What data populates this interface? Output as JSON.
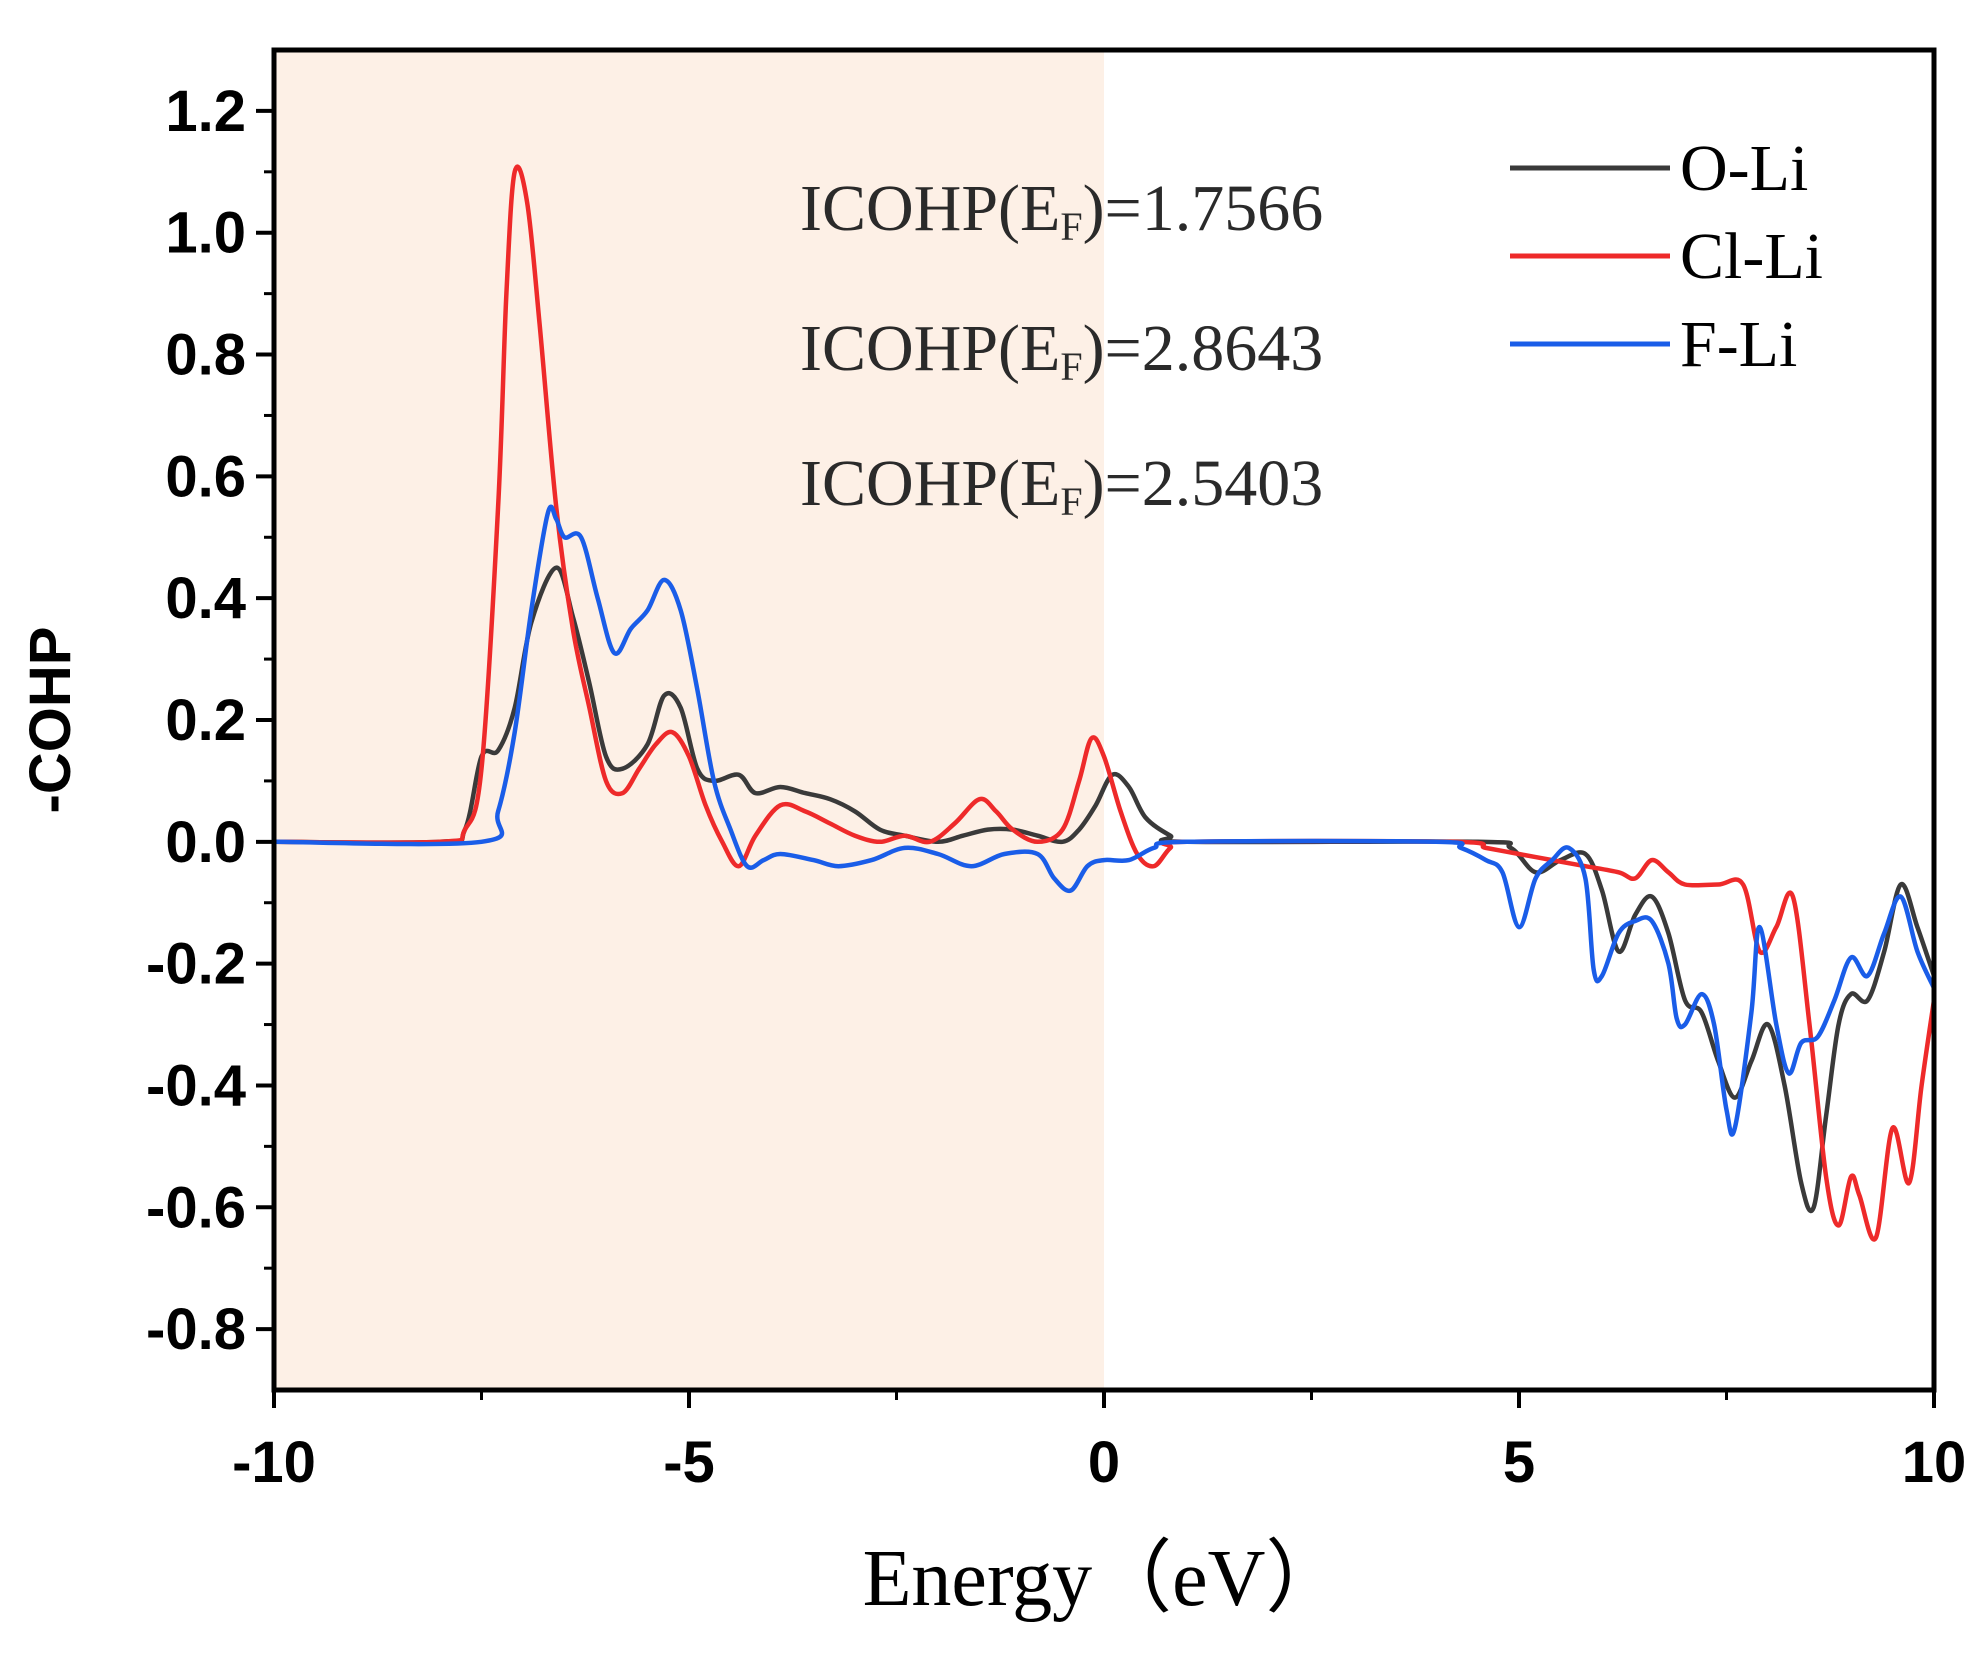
{
  "chart_data": {
    "type": "line",
    "title": "",
    "xlabel": "Energy（eV）",
    "ylabel": "-COHP",
    "xlim": [
      -10,
      10
    ],
    "ylim": [
      -0.9,
      1.3
    ],
    "xticks": [
      -10,
      -5,
      0,
      5,
      10
    ],
    "xtick_labels": [
      "-10",
      "-5",
      "0",
      "5",
      "10"
    ],
    "yticks": [
      -0.8,
      -0.6,
      -0.4,
      -0.2,
      0.0,
      0.2,
      0.4,
      0.6,
      0.8,
      1.0,
      1.2
    ],
    "ytick_labels": [
      "-0.8",
      "-0.6",
      "-0.4",
      "-0.2",
      "0.0",
      "0.2",
      "0.4",
      "0.6",
      "0.8",
      "1.0",
      "1.2"
    ],
    "shaded_region": {
      "x": [
        -10,
        0
      ],
      "color": "#fdf0e6"
    },
    "annotations": [
      {
        "text": "ICOHP(E",
        "sub": "F",
        "value": ")=1.7566"
      },
      {
        "text": "ICOHP(E",
        "sub": "F",
        "value": ")=2.8643"
      },
      {
        "text": "ICOHP(E",
        "sub": "F",
        "value": ")=2.5403"
      }
    ],
    "legend": "top-right",
    "series": [
      {
        "name": "O-Li",
        "color": "#3a3a3a",
        "points": [
          [
            -10,
            0
          ],
          [
            -8,
            0
          ],
          [
            -7.7,
            0.02
          ],
          [
            -7.5,
            0.14
          ],
          [
            -7.3,
            0.15
          ],
          [
            -7.1,
            0.22
          ],
          [
            -6.9,
            0.36
          ],
          [
            -6.6,
            0.45
          ],
          [
            -6.4,
            0.37
          ],
          [
            -6.2,
            0.26
          ],
          [
            -6,
            0.14
          ],
          [
            -5.8,
            0.12
          ],
          [
            -5.5,
            0.16
          ],
          [
            -5.3,
            0.24
          ],
          [
            -5.1,
            0.22
          ],
          [
            -4.9,
            0.12
          ],
          [
            -4.7,
            0.1
          ],
          [
            -4.4,
            0.11
          ],
          [
            -4.2,
            0.08
          ],
          [
            -3.9,
            0.09
          ],
          [
            -3.6,
            0.08
          ],
          [
            -3.3,
            0.07
          ],
          [
            -3,
            0.05
          ],
          [
            -2.7,
            0.02
          ],
          [
            -2.4,
            0.01
          ],
          [
            -2,
            0
          ],
          [
            -1.7,
            0.01
          ],
          [
            -1.4,
            0.02
          ],
          [
            -1.1,
            0.02
          ],
          [
            -0.8,
            0.01
          ],
          [
            -0.5,
            0
          ],
          [
            -0.3,
            0.02
          ],
          [
            -0.1,
            0.06
          ],
          [
            0.1,
            0.11
          ],
          [
            0.3,
            0.09
          ],
          [
            0.5,
            0.04
          ],
          [
            0.8,
            0.01
          ],
          [
            1,
            0
          ],
          [
            4.5,
            0
          ],
          [
            4.9,
            -0.01
          ],
          [
            5.2,
            -0.05
          ],
          [
            5.5,
            -0.03
          ],
          [
            5.8,
            -0.02
          ],
          [
            6,
            -0.08
          ],
          [
            6.2,
            -0.18
          ],
          [
            6.4,
            -0.12
          ],
          [
            6.6,
            -0.09
          ],
          [
            6.8,
            -0.15
          ],
          [
            7,
            -0.26
          ],
          [
            7.2,
            -0.28
          ],
          [
            7.4,
            -0.36
          ],
          [
            7.6,
            -0.42
          ],
          [
            7.8,
            -0.36
          ],
          [
            8,
            -0.3
          ],
          [
            8.2,
            -0.4
          ],
          [
            8.4,
            -0.56
          ],
          [
            8.55,
            -0.6
          ],
          [
            8.7,
            -0.45
          ],
          [
            8.85,
            -0.3
          ],
          [
            9,
            -0.25
          ],
          [
            9.2,
            -0.26
          ],
          [
            9.4,
            -0.18
          ],
          [
            9.6,
            -0.07
          ],
          [
            9.8,
            -0.14
          ],
          [
            10,
            -0.22
          ]
        ]
      },
      {
        "name": "Cl-Li",
        "color": "#ee2a2a",
        "points": [
          [
            -10,
            0
          ],
          [
            -8,
            0
          ],
          [
            -7.7,
            0.02
          ],
          [
            -7.5,
            0.12
          ],
          [
            -7.3,
            0.55
          ],
          [
            -7.2,
            0.9
          ],
          [
            -7.1,
            1.1
          ],
          [
            -6.95,
            1.05
          ],
          [
            -6.8,
            0.85
          ],
          [
            -6.6,
            0.55
          ],
          [
            -6.4,
            0.35
          ],
          [
            -6.2,
            0.22
          ],
          [
            -6,
            0.1
          ],
          [
            -5.8,
            0.08
          ],
          [
            -5.6,
            0.12
          ],
          [
            -5.4,
            0.16
          ],
          [
            -5.2,
            0.18
          ],
          [
            -5,
            0.14
          ],
          [
            -4.8,
            0.06
          ],
          [
            -4.6,
            0
          ],
          [
            -4.4,
            -0.04
          ],
          [
            -4.2,
            0.01
          ],
          [
            -3.9,
            0.06
          ],
          [
            -3.6,
            0.05
          ],
          [
            -3.3,
            0.03
          ],
          [
            -3,
            0.01
          ],
          [
            -2.7,
            0
          ],
          [
            -2.4,
            0.01
          ],
          [
            -2.1,
            0
          ],
          [
            -1.8,
            0.03
          ],
          [
            -1.5,
            0.07
          ],
          [
            -1.3,
            0.05
          ],
          [
            -1.1,
            0.02
          ],
          [
            -0.8,
            0
          ],
          [
            -0.5,
            0.02
          ],
          [
            -0.3,
            0.1
          ],
          [
            -0.15,
            0.17
          ],
          [
            0,
            0.14
          ],
          [
            0.2,
            0.05
          ],
          [
            0.4,
            -0.02
          ],
          [
            0.6,
            -0.04
          ],
          [
            0.8,
            -0.01
          ],
          [
            1,
            0
          ],
          [
            4.2,
            0
          ],
          [
            4.6,
            -0.01
          ],
          [
            5,
            -0.02
          ],
          [
            5.4,
            -0.03
          ],
          [
            5.8,
            -0.04
          ],
          [
            6.2,
            -0.05
          ],
          [
            6.4,
            -0.06
          ],
          [
            6.6,
            -0.03
          ],
          [
            6.8,
            -0.05
          ],
          [
            7,
            -0.07
          ],
          [
            7.4,
            -0.07
          ],
          [
            7.7,
            -0.07
          ],
          [
            7.9,
            -0.18
          ],
          [
            8.1,
            -0.14
          ],
          [
            8.3,
            -0.09
          ],
          [
            8.5,
            -0.3
          ],
          [
            8.7,
            -0.55
          ],
          [
            8.85,
            -0.63
          ],
          [
            9,
            -0.55
          ],
          [
            9.1,
            -0.58
          ],
          [
            9.3,
            -0.65
          ],
          [
            9.5,
            -0.47
          ],
          [
            9.7,
            -0.56
          ],
          [
            9.85,
            -0.4
          ],
          [
            10,
            -0.26
          ]
        ]
      },
      {
        "name": "F-Li",
        "color": "#1a5de8",
        "points": [
          [
            -10,
            0
          ],
          [
            -7.5,
            0
          ],
          [
            -7.3,
            0.05
          ],
          [
            -7.1,
            0.18
          ],
          [
            -6.9,
            0.38
          ],
          [
            -6.7,
            0.54
          ],
          [
            -6.6,
            0.53
          ],
          [
            -6.5,
            0.5
          ],
          [
            -6.3,
            0.5
          ],
          [
            -6.1,
            0.4
          ],
          [
            -5.9,
            0.31
          ],
          [
            -5.7,
            0.35
          ],
          [
            -5.5,
            0.38
          ],
          [
            -5.3,
            0.43
          ],
          [
            -5.1,
            0.38
          ],
          [
            -4.9,
            0.25
          ],
          [
            -4.7,
            0.1
          ],
          [
            -4.5,
            0.02
          ],
          [
            -4.3,
            -0.04
          ],
          [
            -4.1,
            -0.03
          ],
          [
            -3.9,
            -0.02
          ],
          [
            -3.5,
            -0.03
          ],
          [
            -3.2,
            -0.04
          ],
          [
            -2.8,
            -0.03
          ],
          [
            -2.4,
            -0.01
          ],
          [
            -2,
            -0.02
          ],
          [
            -1.6,
            -0.04
          ],
          [
            -1.2,
            -0.02
          ],
          [
            -0.8,
            -0.02
          ],
          [
            -0.6,
            -0.06
          ],
          [
            -0.4,
            -0.08
          ],
          [
            -0.2,
            -0.04
          ],
          [
            0,
            -0.03
          ],
          [
            0.3,
            -0.03
          ],
          [
            0.6,
            -0.01
          ],
          [
            1,
            0
          ],
          [
            4,
            0
          ],
          [
            4.3,
            -0.01
          ],
          [
            4.6,
            -0.03
          ],
          [
            4.8,
            -0.05
          ],
          [
            5,
            -0.14
          ],
          [
            5.2,
            -0.06
          ],
          [
            5.4,
            -0.03
          ],
          [
            5.6,
            -0.01
          ],
          [
            5.8,
            -0.06
          ],
          [
            5.9,
            -0.21
          ],
          [
            6,
            -0.22
          ],
          [
            6.2,
            -0.15
          ],
          [
            6.4,
            -0.13
          ],
          [
            6.6,
            -0.13
          ],
          [
            6.8,
            -0.2
          ],
          [
            6.9,
            -0.29
          ],
          [
            7,
            -0.3
          ],
          [
            7.2,
            -0.25
          ],
          [
            7.35,
            -0.3
          ],
          [
            7.5,
            -0.44
          ],
          [
            7.6,
            -0.47
          ],
          [
            7.8,
            -0.28
          ],
          [
            7.9,
            -0.14
          ],
          [
            8.1,
            -0.3
          ],
          [
            8.25,
            -0.38
          ],
          [
            8.4,
            -0.33
          ],
          [
            8.6,
            -0.32
          ],
          [
            8.8,
            -0.26
          ],
          [
            9,
            -0.19
          ],
          [
            9.2,
            -0.22
          ],
          [
            9.4,
            -0.15
          ],
          [
            9.6,
            -0.09
          ],
          [
            9.8,
            -0.18
          ],
          [
            10,
            -0.24
          ]
        ]
      }
    ]
  }
}
